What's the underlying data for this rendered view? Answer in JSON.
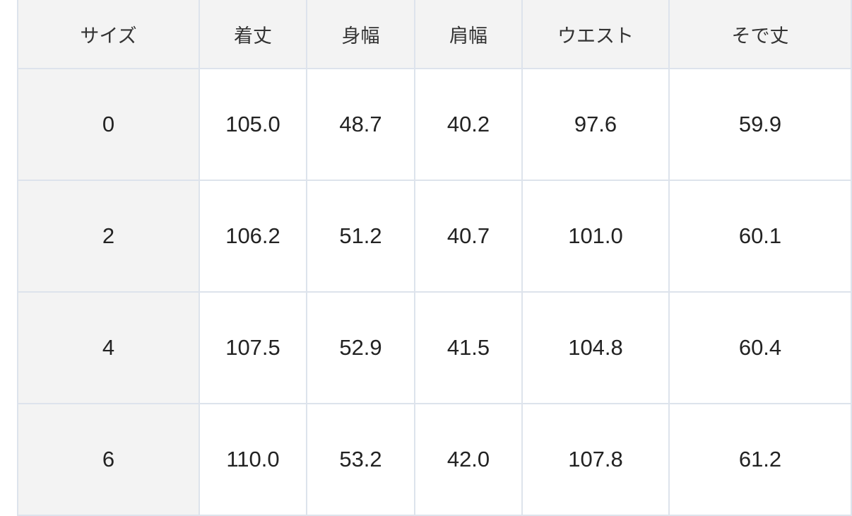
{
  "table": {
    "headers": [
      "サイズ",
      "着丈",
      "身幅",
      "肩幅",
      "ウエスト",
      "そで丈"
    ],
    "rows": [
      [
        "0",
        "105.0",
        "48.7",
        "40.2",
        "97.6",
        "59.9"
      ],
      [
        "2",
        "106.2",
        "51.2",
        "40.7",
        "101.0",
        "60.1"
      ],
      [
        "4",
        "107.5",
        "52.9",
        "41.5",
        "104.8",
        "60.4"
      ],
      [
        "6",
        "110.0",
        "53.2",
        "42.0",
        "107.8",
        "61.2"
      ]
    ]
  }
}
